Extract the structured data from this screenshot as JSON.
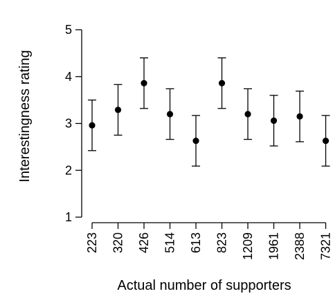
{
  "chart_data": {
    "type": "scatter",
    "xlabel": "Actual number of supporters",
    "ylabel": "Interestingness rating",
    "ylim": [
      1,
      5
    ],
    "yticks": [
      1,
      2,
      3,
      4,
      5
    ],
    "grid": false,
    "categories": [
      "223",
      "320",
      "426",
      "514",
      "613",
      "823",
      "1209",
      "1961",
      "2388",
      "7321"
    ],
    "series": [
      {
        "values": [
          2.96,
          3.29,
          3.86,
          3.2,
          2.63,
          3.86,
          3.2,
          3.06,
          3.15,
          2.63
        ],
        "lower": [
          2.42,
          2.75,
          3.32,
          2.66,
          2.09,
          3.32,
          2.66,
          2.52,
          2.61,
          2.09
        ],
        "upper": [
          3.5,
          3.83,
          4.4,
          3.74,
          3.17,
          4.4,
          3.74,
          3.6,
          3.69,
          3.17
        ]
      }
    ]
  }
}
